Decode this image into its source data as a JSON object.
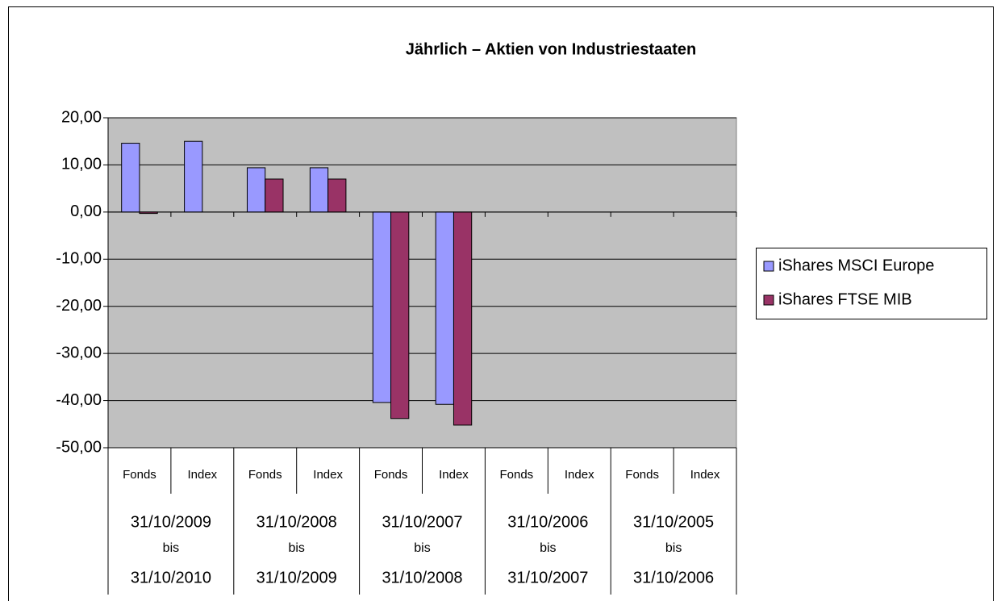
{
  "chart_data": {
    "type": "bar",
    "title": "Jährlich – Aktien von Industriestaaten",
    "categories": [
      "Fonds",
      "Index",
      "Fonds",
      "Index",
      "Fonds",
      "Index",
      "Fonds",
      "Index",
      "Fonds",
      "Index"
    ],
    "category_groups": [
      [
        "31/10/2009",
        "bis",
        "31/10/2010"
      ],
      [
        "31/10/2008",
        "bis",
        "31/10/2009"
      ],
      [
        "31/10/2007",
        "bis",
        "31/10/2008"
      ],
      [
        "31/10/2006",
        "bis",
        "31/10/2007"
      ],
      [
        "31/10/2005",
        "bis",
        "31/10/2006"
      ]
    ],
    "series": [
      {
        "name": "iShares MSCI Europe",
        "color": "#9999ff",
        "values": [
          14.6,
          15.0,
          9.4,
          9.4,
          -40.4,
          -40.8,
          null,
          null,
          null,
          null
        ]
      },
      {
        "name": "iShares FTSE MIB",
        "color": "#993366",
        "values": [
          -0.3,
          null,
          7.0,
          7.0,
          -43.8,
          -45.2,
          null,
          null,
          null,
          null
        ]
      }
    ],
    "ylim": [
      -50,
      20
    ],
    "yticks": [
      {
        "value": -50,
        "label": "-50,00"
      },
      {
        "value": -40,
        "label": "-40,00"
      },
      {
        "value": -30,
        "label": "-30,00"
      },
      {
        "value": -20,
        "label": "-20,00"
      },
      {
        "value": -10,
        "label": "-10,00"
      },
      {
        "value": 0,
        "label": "0,00"
      },
      {
        "value": 10,
        "label": "10,00"
      },
      {
        "value": 20,
        "label": "20,00"
      }
    ],
    "grid": true,
    "legend": "right"
  }
}
